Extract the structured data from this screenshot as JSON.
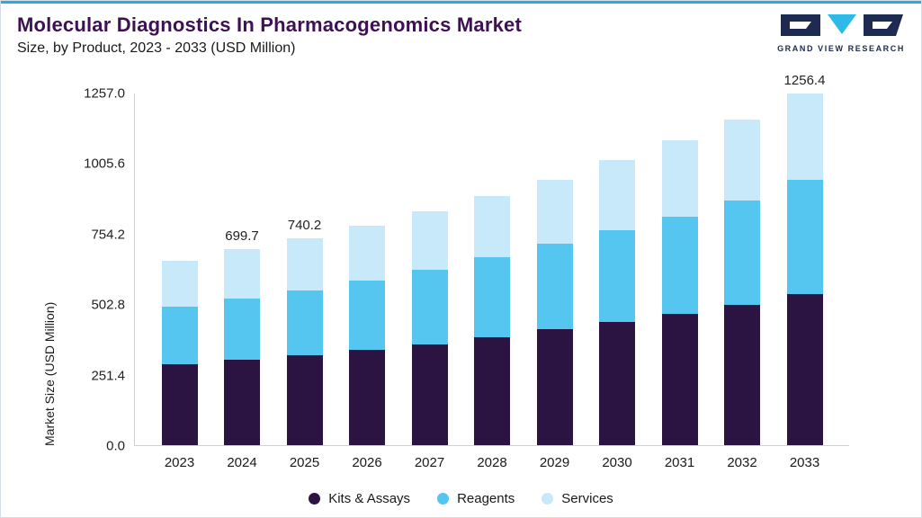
{
  "header": {
    "title": "Molecular Diagnostics In Pharmacogenomics Market",
    "subtitle": "Size, by Product, 2023 - 2033 (USD Million)",
    "logo_text": "GRAND VIEW RESEARCH"
  },
  "chart_data": {
    "type": "bar",
    "stacked": true,
    "title": "Molecular Diagnostics In Pharmacogenomics Market Size, by Product, 2023 - 2033 (USD Million)",
    "xlabel": "",
    "ylabel": "Market Size (USD Million)",
    "ylim": [
      0,
      1257.0
    ],
    "y_ticks": [
      "0.0",
      "251.4",
      "502.8",
      "754.2",
      "1005.6",
      "1257.0"
    ],
    "grid": false,
    "legend_position": "bottom",
    "categories": [
      "2023",
      "2024",
      "2025",
      "2026",
      "2027",
      "2028",
      "2029",
      "2030",
      "2031",
      "2032",
      "2033"
    ],
    "series": [
      {
        "name": "Kits & Assays",
        "color": "#2b1442",
        "values": [
          290,
          305,
          322,
          340,
          360,
          385,
          415,
          442,
          470,
          503,
          540
        ]
      },
      {
        "name": "Reagents",
        "color": "#54c6f0",
        "values": [
          205,
          218,
          232,
          250,
          268,
          288,
          305,
          328,
          348,
          372,
          408
        ]
      },
      {
        "name": "Services",
        "color": "#c7e9fa",
        "values": [
          165,
          176.7,
          186.2,
          195,
          207,
          217,
          230,
          250,
          272,
          290,
          308.4
        ]
      }
    ],
    "bar_labels": [
      "",
      "699.7",
      "740.2",
      "",
      "",
      "",
      "",
      "",
      "",
      "",
      "1256.4"
    ],
    "totals": [
      660,
      699.7,
      740.2,
      785,
      835,
      890,
      950,
      1020,
      1090,
      1165,
      1256.4
    ]
  },
  "colors": {
    "accent_line": "#29aae1",
    "title": "#3d1152",
    "logo_navy": "#1e2a52",
    "logo_teal": "#2fb9e8",
    "axis_line": "#c8d2da"
  }
}
